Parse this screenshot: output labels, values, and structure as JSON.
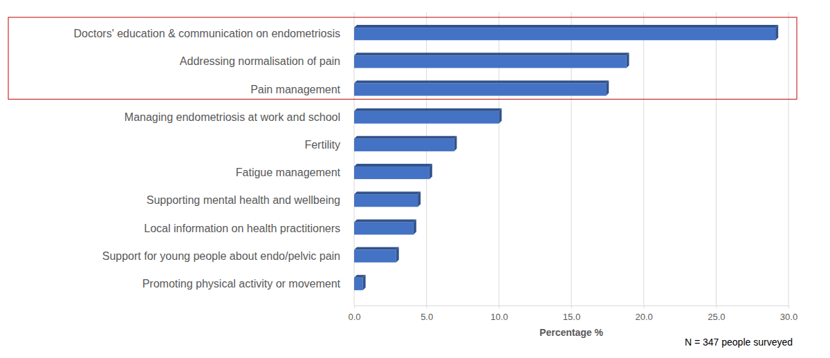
{
  "chart_data": {
    "type": "bar",
    "orientation": "horizontal",
    "categories": [
      "Doctors' education & communication on endometriosis",
      "Addressing normalisation of pain",
      "Pain management",
      "Managing endometriosis at work and school",
      "Fertility",
      "Fatigue management",
      "Supporting mental health and wellbeing",
      "Local information on health practitioners",
      "Support for young people about endo/pelvic pain",
      "Promoting physical activity or movement"
    ],
    "values": [
      29.1,
      18.8,
      17.4,
      10.0,
      6.9,
      5.2,
      4.4,
      4.1,
      2.9,
      0.6
    ],
    "color": "#4472c4",
    "xlim": [
      0,
      30
    ],
    "xticks": [
      {
        "value": 0,
        "label": "0.0"
      },
      {
        "value": 5,
        "label": "5.0"
      },
      {
        "value": 10,
        "label": "10.0"
      },
      {
        "value": 15,
        "label": "15.0"
      },
      {
        "value": 20,
        "label": "20.0"
      },
      {
        "value": 25,
        "label": "25.0"
      },
      {
        "value": 30,
        "label": "30.0"
      }
    ],
    "x_label": "Percentage %",
    "annotations": [
      "N = 347 people surveyed"
    ],
    "grid": true
  }
}
